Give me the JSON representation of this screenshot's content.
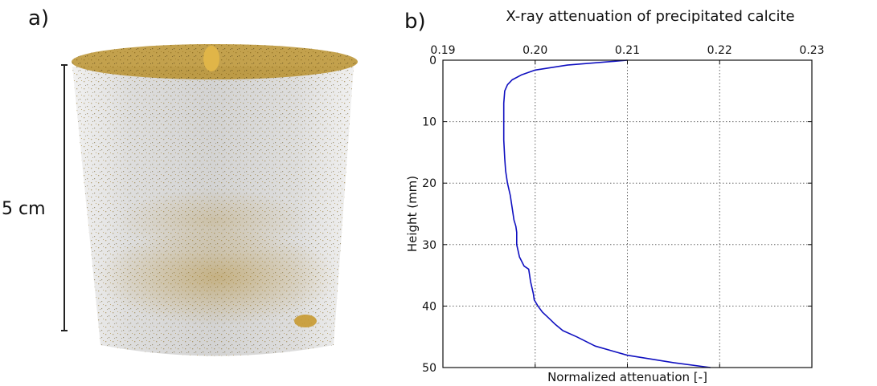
{
  "panel_a": {
    "label": "a)",
    "scale_label": "5 cm"
  },
  "panel_b": {
    "label": "b)"
  },
  "chart_data": {
    "type": "line",
    "title": "X-ray attenuation of precipitated calcite",
    "xlabel": "Normalized attenuation [-]",
    "ylabel": "Height (mm)",
    "xlim": [
      0.19,
      0.23
    ],
    "ylim": [
      0,
      50
    ],
    "y_inverted": true,
    "x_axis_position": "top",
    "xticks": [
      0.19,
      0.2,
      0.21,
      0.22,
      0.23
    ],
    "xtick_labels": [
      "0.19",
      "0.20",
      "0.21",
      "0.22",
      "0.23"
    ],
    "yticks": [
      0,
      10,
      20,
      30,
      40,
      50
    ],
    "ytick_labels": [
      "0",
      "10",
      "20",
      "30",
      "40",
      "50"
    ],
    "grid": true,
    "series": [
      {
        "color": "#1010c0",
        "x": [
          0.21,
          0.2035,
          0.2,
          0.1985,
          0.1975,
          0.197,
          0.1967,
          0.1966,
          0.1966,
          0.1966,
          0.1967,
          0.1968,
          0.197,
          0.1973,
          0.1975,
          0.1977,
          0.1979,
          0.198,
          0.198,
          0.1983,
          0.1988,
          0.1993,
          0.1995,
          0.1998,
          0.1999,
          0.2003,
          0.2008,
          0.2015,
          0.2022,
          0.203,
          0.2045,
          0.2065,
          0.21,
          0.215,
          0.219
        ],
        "y": [
          0,
          0.8,
          1.6,
          2.4,
          3.2,
          4.0,
          5.0,
          7.0,
          10.0,
          13.0,
          16.0,
          18.0,
          20.0,
          22.0,
          24.0,
          26.0,
          27.0,
          28.0,
          30.0,
          32.0,
          33.5,
          34.0,
          36.0,
          38.0,
          39.0,
          40.0,
          41.0,
          42.0,
          43.0,
          44.0,
          45.0,
          46.5,
          48.0,
          49.2,
          50.0
        ]
      }
    ]
  }
}
